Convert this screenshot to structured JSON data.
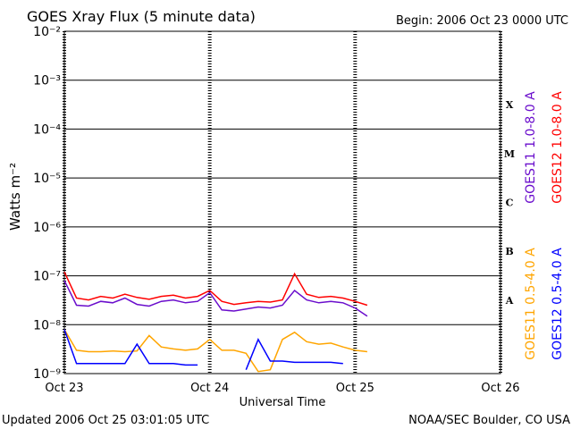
{
  "chart_data": {
    "type": "line",
    "title": "GOES Xray Flux (5 minute data)",
    "subtitle": "Begin:  2006 Oct 23 0000 UTC",
    "x_label": "Universal Time",
    "y_label": "Watts m⁻²",
    "footer_left": "Updated 2006 Oct 25 03:01:05 UTC",
    "footer_right": "NOAA/SEC Boulder, CO USA",
    "class_labels": [
      "A",
      "B",
      "C",
      "M",
      "X"
    ],
    "log_y": true,
    "grid": true,
    "x": [
      0,
      2,
      4,
      6,
      8,
      10,
      12,
      14,
      16,
      18,
      20,
      22,
      24,
      26,
      28,
      30,
      32,
      34,
      36,
      38,
      40,
      42,
      44,
      46,
      48,
      50
    ],
    "xlim": [
      0,
      72
    ],
    "xticks": [
      {
        "value": 0,
        "label": "Oct 23"
      },
      {
        "value": 24,
        "label": "Oct 24"
      },
      {
        "value": 48,
        "label": "Oct 25"
      },
      {
        "value": 72,
        "label": "Oct 26"
      }
    ],
    "ylim": [
      1e-09,
      0.01
    ],
    "yticks": [
      {
        "value": 1e-09,
        "label": "10⁻⁹"
      },
      {
        "value": 1e-08,
        "label": "10⁻⁸"
      },
      {
        "value": 1e-07,
        "label": "10⁻⁷"
      },
      {
        "value": 1e-06,
        "label": "10⁻⁶"
      },
      {
        "value": 1e-05,
        "label": "10⁻⁵"
      },
      {
        "value": 0.0001,
        "label": "10⁻⁴"
      },
      {
        "value": 0.001,
        "label": "10⁻³"
      },
      {
        "value": 0.01,
        "label": "10⁻²"
      }
    ],
    "series": [
      {
        "name": "GOES11 1.0-8.0 A",
        "color": "#6a0dcc",
        "values": [
          8e-08,
          2.5e-08,
          2.4e-08,
          3e-08,
          2.8e-08,
          3.5e-08,
          2.6e-08,
          2.4e-08,
          3e-08,
          3.2e-08,
          2.8e-08,
          3e-08,
          4.5e-08,
          2e-08,
          1.9e-08,
          2.1e-08,
          2.3e-08,
          2.2e-08,
          2.5e-08,
          5e-08,
          3.2e-08,
          2.8e-08,
          3e-08,
          2.8e-08,
          2.2e-08,
          1.5e-08
        ]
      },
      {
        "name": "GOES12 1.0-8.0 A",
        "color": "#ff0000",
        "values": [
          1.2e-07,
          3.5e-08,
          3.2e-08,
          3.8e-08,
          3.5e-08,
          4.2e-08,
          3.6e-08,
          3.3e-08,
          3.8e-08,
          4e-08,
          3.5e-08,
          3.8e-08,
          5e-08,
          3e-08,
          2.6e-08,
          2.8e-08,
          3e-08,
          2.9e-08,
          3.2e-08,
          1.1e-07,
          4.2e-08,
          3.6e-08,
          3.8e-08,
          3.5e-08,
          3e-08,
          2.5e-08
        ]
      },
      {
        "name": "GOES11 0.5-4.0 A",
        "color": "#ffa500",
        "values": [
          8e-09,
          3e-09,
          2.8e-09,
          2.8e-09,
          2.9e-09,
          2.8e-09,
          2.9e-09,
          6e-09,
          3.5e-09,
          3.2e-09,
          3e-09,
          3.2e-09,
          5e-09,
          3e-09,
          3e-09,
          2.6e-09,
          1.1e-09,
          1.2e-09,
          5e-09,
          7e-09,
          4.5e-09,
          4e-09,
          4.2e-09,
          3.5e-09,
          3e-09,
          2.8e-09
        ]
      },
      {
        "name": "GOES12 0.5-4.0 A",
        "color": "#0000ff",
        "values": [
          8e-09,
          1.6e-09,
          1.6e-09,
          1.6e-09,
          1.6e-09,
          1.6e-09,
          4e-09,
          1.6e-09,
          1.6e-09,
          1.6e-09,
          1.5e-09,
          1.5e-09,
          null,
          null,
          null,
          1.2e-09,
          5e-09,
          1.8e-09,
          1.8e-09,
          1.7e-09,
          1.7e-09,
          1.7e-09,
          1.7e-09,
          1.6e-09,
          null,
          null
        ]
      }
    ]
  }
}
